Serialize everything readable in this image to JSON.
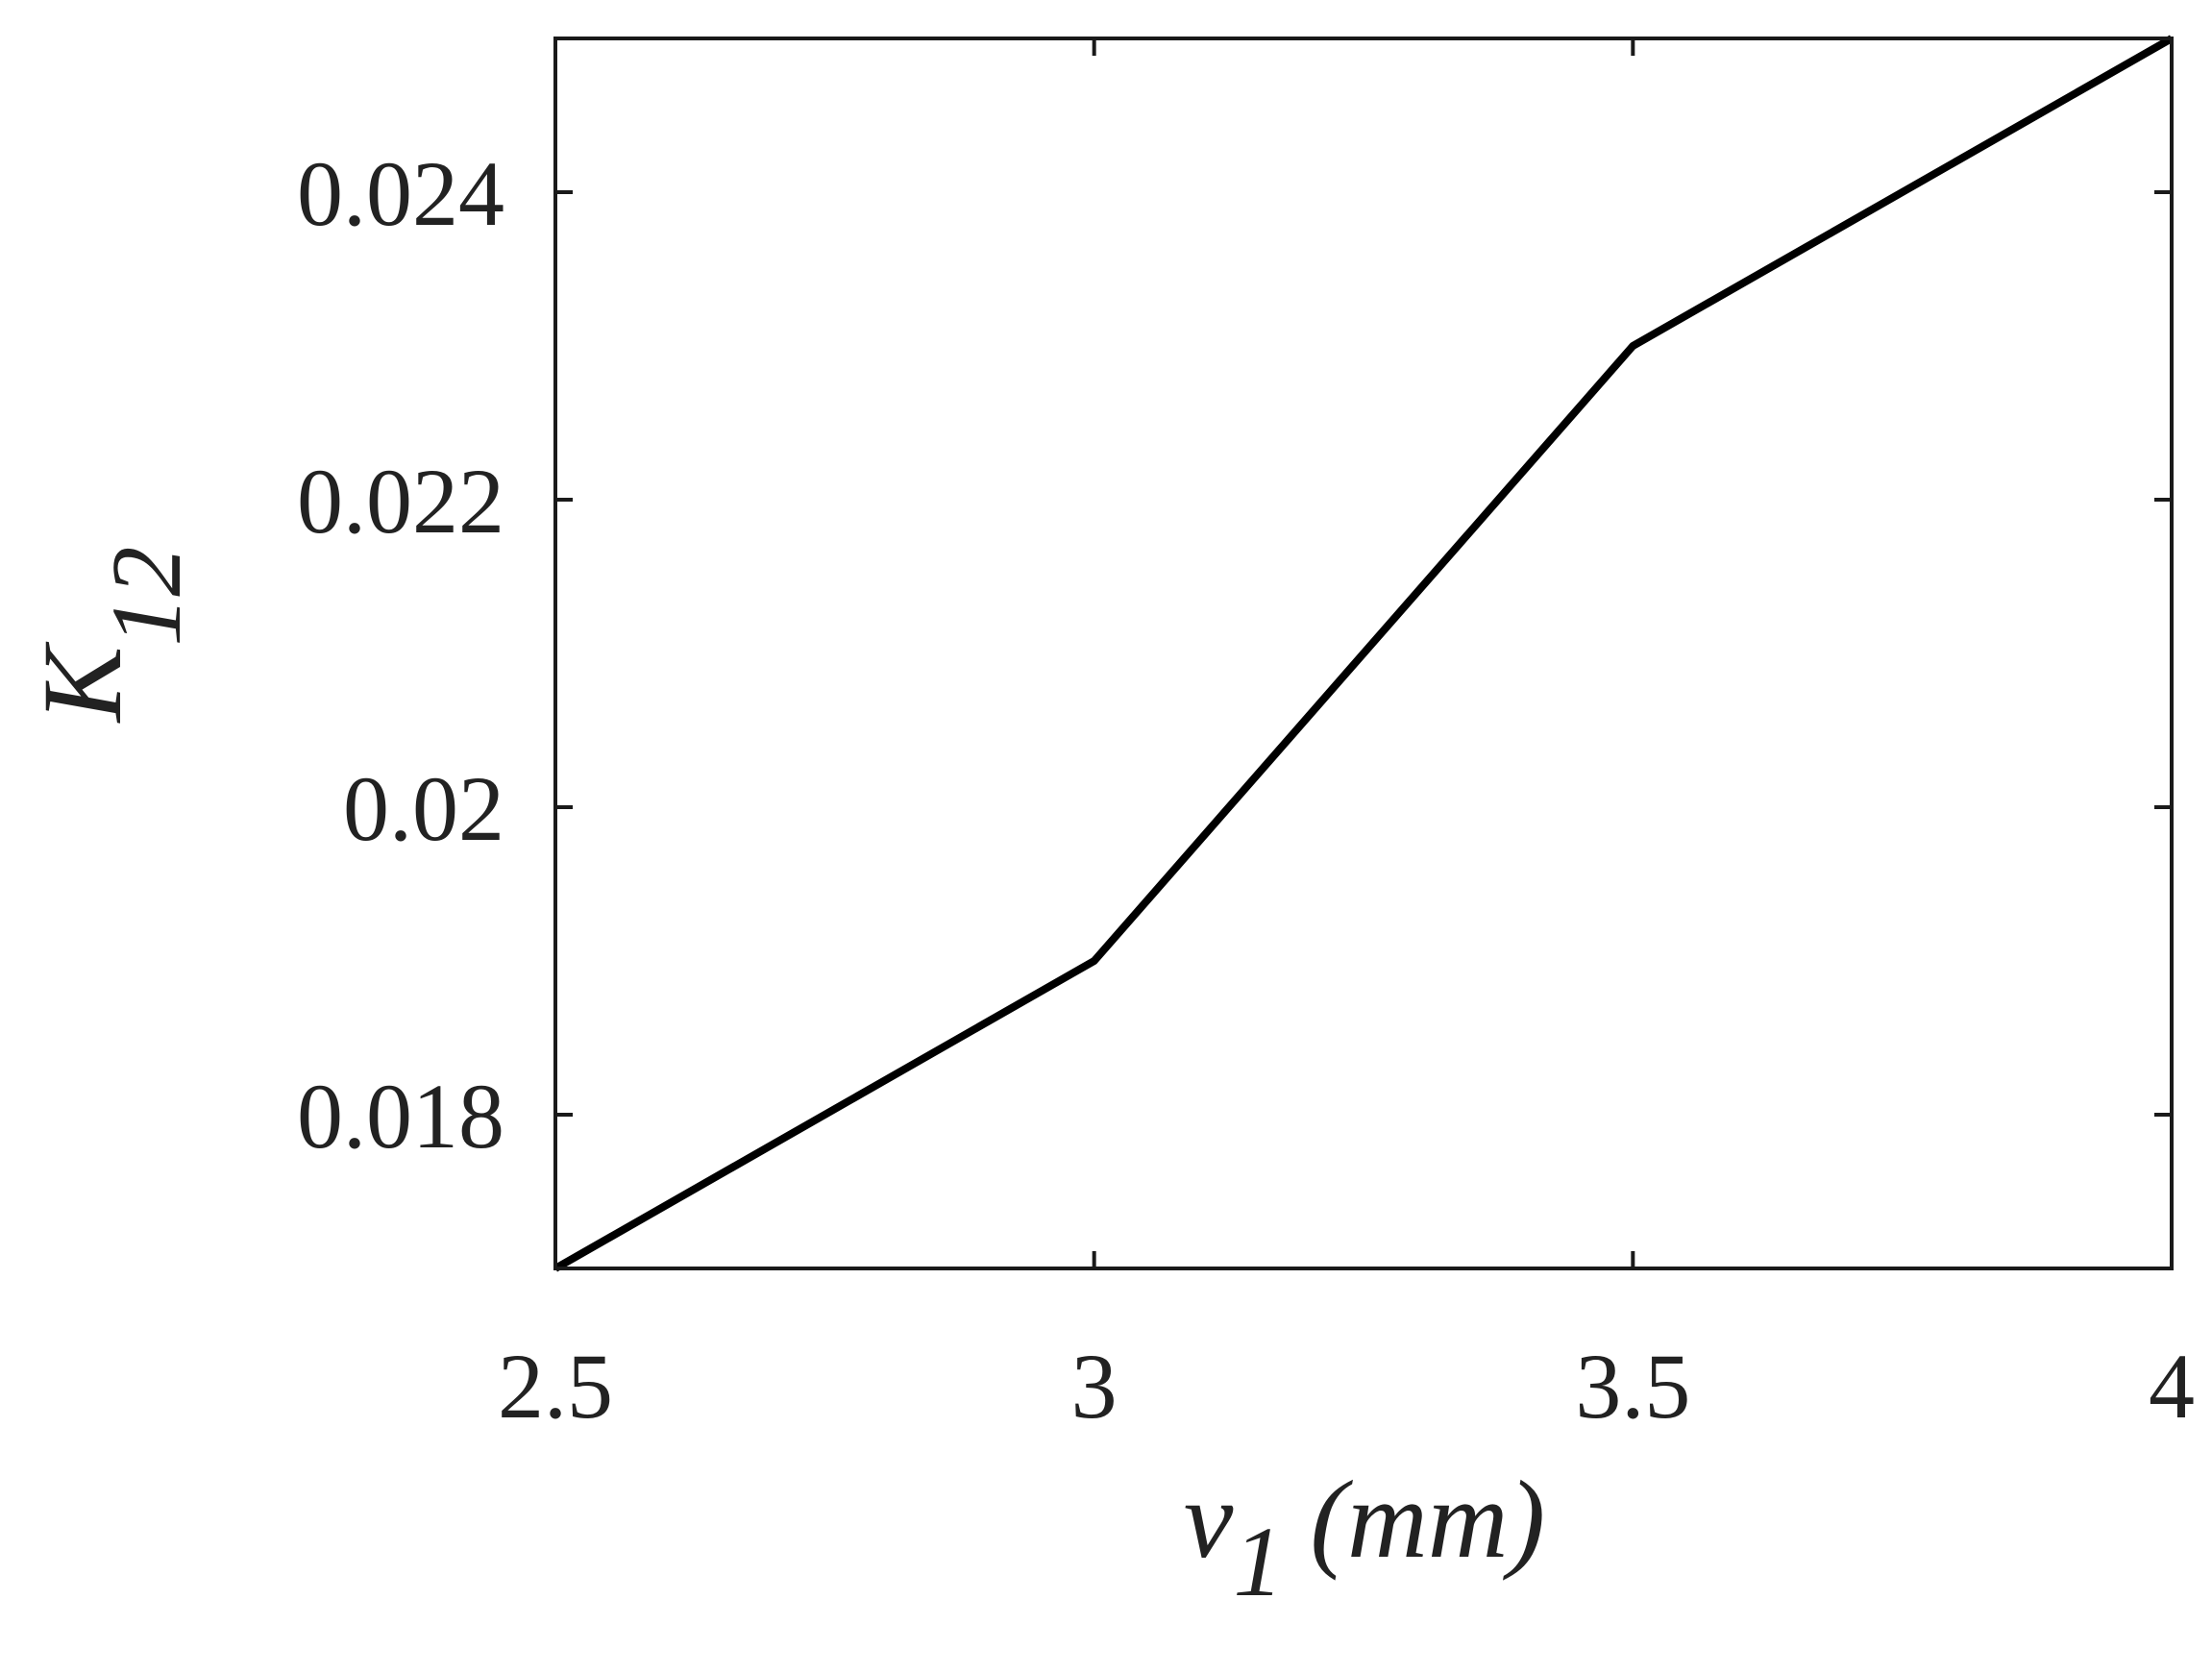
{
  "chart_data": {
    "type": "line",
    "title": "",
    "xlabel": {
      "main": "v",
      "sub": "1",
      "unit": "(mm)"
    },
    "ylabel": {
      "main": "K",
      "sub": "12"
    },
    "xlim": [
      2.5,
      4
    ],
    "ylim": [
      0.017,
      0.025
    ],
    "x_ticks": [
      2.5,
      3,
      3.5,
      4
    ],
    "x_tick_labels": [
      "2.5",
      "3",
      "3.5",
      "4"
    ],
    "y_ticks": [
      0.018,
      0.02,
      0.022,
      0.024
    ],
    "y_tick_labels": [
      "0.018",
      "0.02",
      "0.022",
      "0.024"
    ],
    "grid": false,
    "series": [
      {
        "color": "#000000",
        "x": [
          2.5,
          3,
          3.5,
          4
        ],
        "values": [
          0.017,
          0.019,
          0.023,
          0.025
        ]
      }
    ]
  }
}
